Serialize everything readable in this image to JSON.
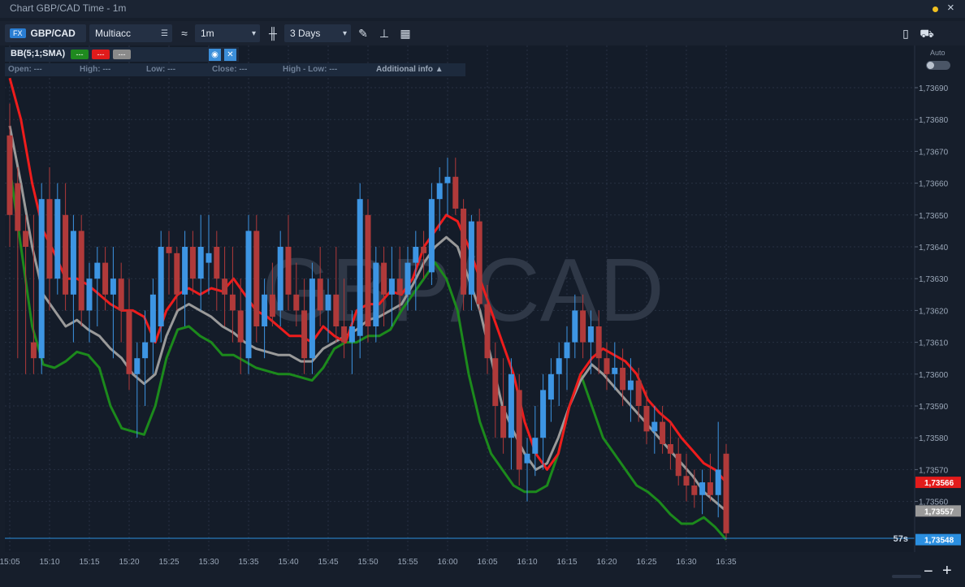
{
  "window": {
    "title": "Chart GBP/CAD Time - 1m",
    "close": "×"
  },
  "toolbar": {
    "fx_badge": "FX",
    "symbol": "GBP/CAD",
    "account": "Multiacc",
    "timeframe": "1m",
    "range": "3 Days",
    "chevron": "▾"
  },
  "indicator": {
    "name": "BB(5;1;SMA)",
    "swatches": [
      {
        "label": "---",
        "color": "#1f8a1f"
      },
      {
        "label": "---",
        "color": "#e01b1b"
      },
      {
        "label": "---",
        "color": "#8a8a8a"
      }
    ],
    "eye": "◉",
    "close": "✕"
  },
  "ohlc_info": {
    "open": "Open: ---",
    "high": "High: ---",
    "low": "Low: ---",
    "close": "Close: ---",
    "high_low": "High - Low: ---",
    "additional": "Additional info ▲"
  },
  "auto_label": "Auto",
  "watermark": "GBP/CAD",
  "countdown": "57s",
  "zoom": {
    "out": "−",
    "in": "+"
  },
  "chart_data": {
    "type": "candlestick",
    "ylim": [
      1.73545,
      1.73695
    ],
    "y_ticks": [
      "1,73690",
      "1,73680",
      "1,73670",
      "1,73660",
      "1,73650",
      "1,73640",
      "1,73630",
      "1,73620",
      "1,73610",
      "1,73600",
      "1,73590",
      "1,73580",
      "1,73570",
      "1,73560"
    ],
    "x_ticks": [
      "15:05",
      "15:10",
      "15:15",
      "15:20",
      "15:25",
      "15:30",
      "15:35",
      "15:40",
      "15:45",
      "15:50",
      "15:55",
      "16:00",
      "16:05",
      "16:10",
      "16:15",
      "16:20",
      "16:25",
      "16:30",
      "16:35"
    ],
    "x_start_label": "15:05",
    "colors": {
      "up": "#3d95e3",
      "down": "#b03a3a",
      "upper": "#ee1c1c",
      "middle": "#9a9a9a",
      "lower": "#1c8a1c"
    },
    "candles": [
      [
        1.73675,
        1.73685,
        1.7364,
        1.7365
      ],
      [
        1.7366,
        1.73665,
        1.73605,
        1.73645
      ],
      [
        1.73645,
        1.7365,
        1.736,
        1.7364
      ],
      [
        1.7361,
        1.7365,
        1.736,
        1.73605
      ],
      [
        1.73605,
        1.7366,
        1.736,
        1.73655
      ],
      [
        1.73655,
        1.73665,
        1.7362,
        1.7363
      ],
      [
        1.7363,
        1.7366,
        1.73625,
        1.73655
      ],
      [
        1.7365,
        1.7366,
        1.7362,
        1.73625
      ],
      [
        1.73625,
        1.7365,
        1.7361,
        1.73645
      ],
      [
        1.73645,
        1.7365,
        1.73615,
        1.7362
      ],
      [
        1.7362,
        1.73635,
        1.7361,
        1.7363
      ],
      [
        1.7363,
        1.7364,
        1.73615,
        1.73635
      ],
      [
        1.73635,
        1.7364,
        1.7362,
        1.73625
      ],
      [
        1.73625,
        1.7364,
        1.73605,
        1.7363
      ],
      [
        1.7363,
        1.73635,
        1.7361,
        1.7362
      ],
      [
        1.7362,
        1.7363,
        1.73595,
        1.736
      ],
      [
        1.736,
        1.7361,
        1.7358,
        1.73605
      ],
      [
        1.73605,
        1.7362,
        1.7359,
        1.7361
      ],
      [
        1.7361,
        1.7363,
        1.736,
        1.73625
      ],
      [
        1.73615,
        1.73645,
        1.7361,
        1.7364
      ],
      [
        1.7364,
        1.73645,
        1.73625,
        1.73638
      ],
      [
        1.73638,
        1.7364,
        1.7362,
        1.73625
      ],
      [
        1.73625,
        1.73645,
        1.73615,
        1.7364
      ],
      [
        1.7364,
        1.73645,
        1.73625,
        1.7363
      ],
      [
        1.7363,
        1.7365,
        1.7362,
        1.7364
      ],
      [
        1.73635,
        1.7365,
        1.73625,
        1.73638
      ],
      [
        1.7364,
        1.73645,
        1.7362,
        1.7363
      ],
      [
        1.7363,
        1.7364,
        1.73615,
        1.73625
      ],
      [
        1.73625,
        1.7364,
        1.7361,
        1.7362
      ],
      [
        1.7362,
        1.7363,
        1.736,
        1.7361
      ],
      [
        1.73605,
        1.7365,
        1.736,
        1.73645
      ],
      [
        1.73645,
        1.7365,
        1.7361,
        1.73615
      ],
      [
        1.73615,
        1.7363,
        1.73605,
        1.73625
      ],
      [
        1.73625,
        1.73635,
        1.73615,
        1.73618
      ],
      [
        1.7362,
        1.73645,
        1.73615,
        1.7364
      ],
      [
        1.7364,
        1.7365,
        1.7362,
        1.73625
      ],
      [
        1.73625,
        1.73635,
        1.73615,
        1.7362
      ],
      [
        1.7362,
        1.7363,
        1.736,
        1.73605
      ],
      [
        1.73605,
        1.73635,
        1.736,
        1.7363
      ],
      [
        1.7363,
        1.7364,
        1.73615,
        1.7362
      ],
      [
        1.7362,
        1.7363,
        1.7361,
        1.73625
      ],
      [
        1.73625,
        1.7364,
        1.7361,
        1.73615
      ],
      [
        1.73615,
        1.7363,
        1.73605,
        1.7361
      ],
      [
        1.7361,
        1.7362,
        1.736,
        1.73615
      ],
      [
        1.73612,
        1.7366,
        1.73605,
        1.73655
      ],
      [
        1.7365,
        1.73655,
        1.7361,
        1.73615
      ],
      [
        1.73615,
        1.7364,
        1.7361,
        1.73635
      ],
      [
        1.73635,
        1.7364,
        1.73615,
        1.73625
      ],
      [
        1.73625,
        1.7364,
        1.73615,
        1.7363
      ],
      [
        1.7363,
        1.7364,
        1.7362,
        1.73625
      ],
      [
        1.73625,
        1.7364,
        1.7362,
        1.73635
      ],
      [
        1.73635,
        1.73645,
        1.7362,
        1.7364
      ],
      [
        1.7364,
        1.73645,
        1.7363,
        1.73638
      ],
      [
        1.73632,
        1.7366,
        1.73628,
        1.73655
      ],
      [
        1.73655,
        1.73665,
        1.73645,
        1.7366
      ],
      [
        1.7366,
        1.73668,
        1.7365,
        1.73662
      ],
      [
        1.73662,
        1.73668,
        1.7365,
        1.73652
      ],
      [
        1.73652,
        1.73655,
        1.7362,
        1.73625
      ],
      [
        1.73625,
        1.7365,
        1.7362,
        1.73648
      ],
      [
        1.73648,
        1.73652,
        1.7362,
        1.73622
      ],
      [
        1.73622,
        1.73628,
        1.736,
        1.73605
      ],
      [
        1.73605,
        1.7361,
        1.7358,
        1.7359
      ],
      [
        1.7359,
        1.73605,
        1.73575,
        1.7358
      ],
      [
        1.7358,
        1.73605,
        1.7357,
        1.736
      ],
      [
        1.73595,
        1.736,
        1.73565,
        1.7357
      ],
      [
        1.73572,
        1.7358,
        1.7356,
        1.73575
      ],
      [
        1.73575,
        1.7359,
        1.73568,
        1.7358
      ],
      [
        1.7358,
        1.736,
        1.7357,
        1.73595
      ],
      [
        1.73592,
        1.73605,
        1.73585,
        1.736
      ],
      [
        1.736,
        1.7361,
        1.7359,
        1.73605
      ],
      [
        1.73605,
        1.73615,
        1.73595,
        1.7361
      ],
      [
        1.7361,
        1.73625,
        1.73605,
        1.7362
      ],
      [
        1.7362,
        1.73625,
        1.73605,
        1.7361
      ],
      [
        1.7361,
        1.7362,
        1.736,
        1.73615
      ],
      [
        1.73615,
        1.7362,
        1.736,
        1.73605
      ],
      [
        1.73605,
        1.7361,
        1.73595,
        1.736
      ],
      [
        1.736,
        1.7361,
        1.73595,
        1.73602
      ],
      [
        1.73602,
        1.73608,
        1.7359,
        1.73595
      ],
      [
        1.73595,
        1.73605,
        1.73585,
        1.73598
      ],
      [
        1.73598,
        1.73602,
        1.73585,
        1.7359
      ],
      [
        1.7359,
        1.73595,
        1.73578,
        1.73582
      ],
      [
        1.73582,
        1.7359,
        1.73575,
        1.73585
      ],
      [
        1.73585,
        1.7359,
        1.73575,
        1.73578
      ],
      [
        1.73578,
        1.73585,
        1.7357,
        1.73575
      ],
      [
        1.73575,
        1.7358,
        1.73565,
        1.73568
      ],
      [
        1.73568,
        1.73575,
        1.7356,
        1.73565
      ],
      [
        1.73565,
        1.7357,
        1.73558,
        1.73562
      ],
      [
        1.73562,
        1.7357,
        1.73556,
        1.73566
      ],
      [
        1.73566,
        1.73575,
        1.7356,
        1.73562
      ],
      [
        1.73562,
        1.73585,
        1.73555,
        1.7357
      ],
      [
        1.73575,
        1.73578,
        1.73548,
        1.7355
      ]
    ],
    "bands": {
      "upper": [
        1.73693,
        1.7368,
        1.7366,
        1.73645,
        1.73638,
        1.7363,
        1.7363,
        1.73628,
        1.73625,
        1.73622,
        1.7362,
        1.7362,
        1.73618,
        1.7361,
        1.7362,
        1.73625,
        1.73627,
        1.73625,
        1.73627,
        1.73626,
        1.7363,
        1.73625,
        1.7362,
        1.73618,
        1.73615,
        1.73612,
        1.73612,
        1.7361,
        1.73615,
        1.73612,
        1.7361,
        1.7362,
        1.73622,
        1.73622,
        1.73626,
        1.73625,
        1.7363,
        1.7364,
        1.73645,
        1.7365,
        1.73648,
        1.7364,
        1.7363,
        1.7362,
        1.7361,
        1.736,
        1.73585,
        1.73575,
        1.7357,
        1.73575,
        1.7359,
        1.736,
        1.73605,
        1.73608,
        1.73606,
        1.73604,
        1.736,
        1.73592,
        1.73588,
        1.73585,
        1.7358,
        1.73576,
        1.73572,
        1.7357,
        1.73566
      ],
      "middle": [
        1.73678,
        1.7366,
        1.7364,
        1.73625,
        1.7362,
        1.73615,
        1.73617,
        1.73614,
        1.73612,
        1.73608,
        1.73605,
        1.736,
        1.73597,
        1.736,
        1.73612,
        1.7362,
        1.73622,
        1.7362,
        1.73618,
        1.73615,
        1.73613,
        1.7361,
        1.73608,
        1.73607,
        1.73606,
        1.73606,
        1.73604,
        1.73604,
        1.73608,
        1.7361,
        1.73612,
        1.73614,
        1.73617,
        1.73618,
        1.7362,
        1.73622,
        1.73628,
        1.73635,
        1.7364,
        1.73643,
        1.7364,
        1.7363,
        1.7362,
        1.73605,
        1.7359,
        1.73582,
        1.73575,
        1.7357,
        1.73572,
        1.7358,
        1.7359,
        1.73598,
        1.73603,
        1.736,
        1.73596,
        1.73592,
        1.73588,
        1.73584,
        1.7358,
        1.73576,
        1.73572,
        1.73568,
        1.73563,
        1.7356,
        1.73557
      ],
      "lower": [
        1.73665,
        1.7364,
        1.73615,
        1.73603,
        1.73602,
        1.73604,
        1.73607,
        1.73606,
        1.73602,
        1.7359,
        1.73583,
        1.73582,
        1.73581,
        1.7359,
        1.73605,
        1.73614,
        1.73615,
        1.73612,
        1.7361,
        1.73606,
        1.73606,
        1.73604,
        1.73602,
        1.73601,
        1.736,
        1.736,
        1.73599,
        1.73598,
        1.73602,
        1.73608,
        1.7361,
        1.7361,
        1.73612,
        1.73612,
        1.73614,
        1.7362,
        1.73625,
        1.7363,
        1.73635,
        1.7363,
        1.7362,
        1.736,
        1.73585,
        1.73575,
        1.7357,
        1.73565,
        1.73563,
        1.73563,
        1.73565,
        1.73575,
        1.7359,
        1.736,
        1.7359,
        1.7358,
        1.73575,
        1.7357,
        1.73565,
        1.73563,
        1.7356,
        1.73556,
        1.73553,
        1.73553,
        1.73555,
        1.73552,
        1.73548
      ]
    },
    "price_labels": {
      "upper": "1,73566",
      "middle": "1,73557",
      "current": "1,73548",
      "current_value": 1.73548
    }
  }
}
